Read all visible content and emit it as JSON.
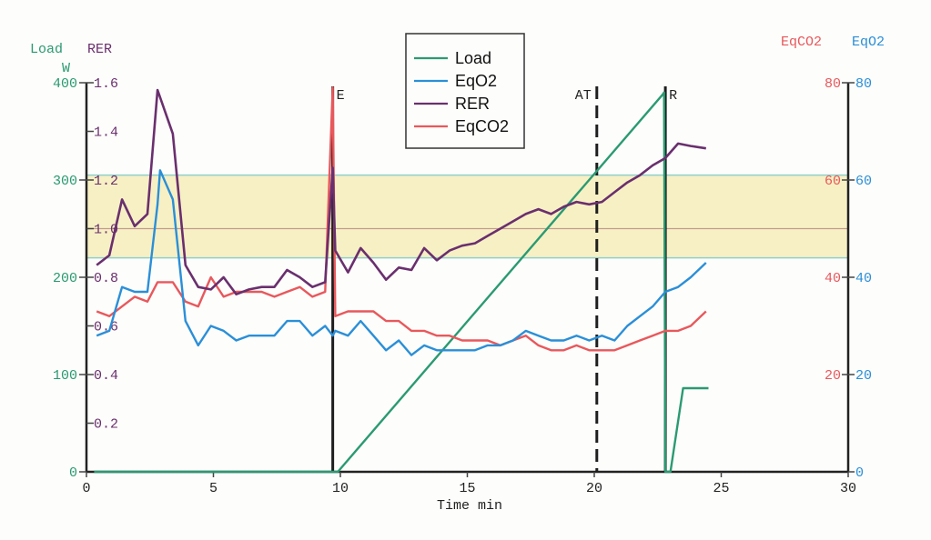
{
  "chart_data": {
    "type": "line",
    "colors": {
      "load": "#2a9a72",
      "rer": "#6a2f6e",
      "eqo2": "#2a8fd8",
      "eqco2": "#e8585c",
      "band": "#f7f0c4",
      "band_edge": "#8fcfc9",
      "rer_ref": "#c49a8e",
      "axis": "#222222"
    },
    "xaxis": {
      "label": "Time  min",
      "range": [
        0,
        30
      ],
      "ticks": [
        "0",
        "5",
        "10",
        "15",
        "20",
        "25",
        "30"
      ]
    },
    "left_axes": {
      "load": {
        "title": "Load",
        "unit": "W",
        "range": [
          0,
          400
        ],
        "ticks": [
          "0",
          "100",
          "200",
          "300",
          "400"
        ]
      },
      "rer": {
        "title": "RER",
        "range": [
          0,
          1.6
        ],
        "ticks": [
          "0.2",
          "0.4",
          "0.6",
          "0.8",
          "1.0",
          "1.2",
          "1.4",
          "1.6"
        ]
      }
    },
    "right_axes": {
      "eqco2": {
        "title": "EqCO2",
        "range": [
          0,
          80
        ],
        "ticks": [
          "20",
          "40",
          "60",
          "80"
        ]
      },
      "eqo2": {
        "title": "EqO2",
        "range": [
          0,
          80
        ],
        "ticks": [
          "0",
          "20",
          "40",
          "60",
          "80"
        ]
      }
    },
    "markers": [
      {
        "label": "E",
        "x": 9.7,
        "style": "solid"
      },
      {
        "label": "AT",
        "x": 20.1,
        "style": "dashed"
      },
      {
        "label": "R",
        "x": 22.8,
        "style": "solid"
      }
    ],
    "reference_band": {
      "rer_range": [
        0.88,
        1.22
      ],
      "rer_line": 1.0
    },
    "legend": [
      "Load",
      "EqO2",
      "RER",
      "EqCO2"
    ],
    "series": [
      {
        "name": "Load",
        "key": "load",
        "axis": "load",
        "points": [
          [
            0.3,
            0
          ],
          [
            9.7,
            0
          ],
          [
            9.9,
            0
          ],
          [
            22.7,
            388
          ],
          [
            22.75,
            390
          ],
          [
            22.8,
            0
          ],
          [
            23.0,
            0
          ],
          [
            23.5,
            86
          ],
          [
            24.5,
            86
          ]
        ]
      },
      {
        "name": "EqO2",
        "key": "eqo2",
        "axis": "eqo2",
        "points": [
          [
            0.4,
            28
          ],
          [
            0.9,
            29
          ],
          [
            1.4,
            38
          ],
          [
            1.9,
            37
          ],
          [
            2.4,
            37
          ],
          [
            2.8,
            55
          ],
          [
            2.9,
            62
          ],
          [
            3.4,
            56
          ],
          [
            3.9,
            31
          ],
          [
            4.4,
            26
          ],
          [
            4.9,
            30
          ],
          [
            5.4,
            29
          ],
          [
            5.9,
            27
          ],
          [
            6.4,
            28
          ],
          [
            6.9,
            28
          ],
          [
            7.4,
            28
          ],
          [
            7.9,
            31
          ],
          [
            8.4,
            31
          ],
          [
            8.9,
            28
          ],
          [
            9.4,
            30
          ],
          [
            9.7,
            28
          ],
          [
            9.8,
            29
          ],
          [
            10.3,
            28
          ],
          [
            10.8,
            31
          ],
          [
            11.3,
            28
          ],
          [
            11.8,
            25
          ],
          [
            12.3,
            27
          ],
          [
            12.8,
            24
          ],
          [
            13.3,
            26
          ],
          [
            13.8,
            25
          ],
          [
            14.3,
            25
          ],
          [
            14.8,
            25
          ],
          [
            15.3,
            25
          ],
          [
            15.8,
            26
          ],
          [
            16.3,
            26
          ],
          [
            16.8,
            27
          ],
          [
            17.3,
            29
          ],
          [
            17.8,
            28
          ],
          [
            18.3,
            27
          ],
          [
            18.8,
            27
          ],
          [
            19.3,
            28
          ],
          [
            19.8,
            27
          ],
          [
            20.3,
            28
          ],
          [
            20.8,
            27
          ],
          [
            21.3,
            30
          ],
          [
            21.8,
            32
          ],
          [
            22.3,
            34
          ],
          [
            22.8,
            37
          ],
          [
            23.3,
            38
          ],
          [
            23.8,
            40
          ],
          [
            24.4,
            43
          ]
        ]
      },
      {
        "name": "RER",
        "key": "rer",
        "axis": "rer",
        "points": [
          [
            0.4,
            0.85
          ],
          [
            0.9,
            0.89
          ],
          [
            1.4,
            1.12
          ],
          [
            1.9,
            1.01
          ],
          [
            2.4,
            1.06
          ],
          [
            2.8,
            1.57
          ],
          [
            3.4,
            1.39
          ],
          [
            3.9,
            0.85
          ],
          [
            4.4,
            0.76
          ],
          [
            4.9,
            0.75
          ],
          [
            5.4,
            0.8
          ],
          [
            5.9,
            0.73
          ],
          [
            6.4,
            0.75
          ],
          [
            6.9,
            0.76
          ],
          [
            7.4,
            0.76
          ],
          [
            7.9,
            0.83
          ],
          [
            8.4,
            0.8
          ],
          [
            8.9,
            0.76
          ],
          [
            9.4,
            0.78
          ],
          [
            9.7,
            1.25
          ],
          [
            9.8,
            0.91
          ],
          [
            10.3,
            0.82
          ],
          [
            10.8,
            0.92
          ],
          [
            11.3,
            0.86
          ],
          [
            11.8,
            0.79
          ],
          [
            12.3,
            0.84
          ],
          [
            12.8,
            0.83
          ],
          [
            13.3,
            0.92
          ],
          [
            13.8,
            0.87
          ],
          [
            14.3,
            0.91
          ],
          [
            14.8,
            0.93
          ],
          [
            15.3,
            0.94
          ],
          [
            15.8,
            0.97
          ],
          [
            16.3,
            1.0
          ],
          [
            16.8,
            1.03
          ],
          [
            17.3,
            1.06
          ],
          [
            17.8,
            1.08
          ],
          [
            18.3,
            1.06
          ],
          [
            18.8,
            1.09
          ],
          [
            19.3,
            1.11
          ],
          [
            19.8,
            1.1
          ],
          [
            20.3,
            1.11
          ],
          [
            20.8,
            1.15
          ],
          [
            21.3,
            1.19
          ],
          [
            21.8,
            1.22
          ],
          [
            22.3,
            1.26
          ],
          [
            22.8,
            1.29
          ],
          [
            23.3,
            1.35
          ],
          [
            23.8,
            1.34
          ],
          [
            24.4,
            1.33
          ]
        ]
      },
      {
        "name": "EqCO2",
        "key": "eqco2",
        "axis": "eqco2",
        "points": [
          [
            0.4,
            33
          ],
          [
            0.9,
            32
          ],
          [
            1.4,
            34
          ],
          [
            1.9,
            36
          ],
          [
            2.4,
            35
          ],
          [
            2.8,
            39
          ],
          [
            3.4,
            39
          ],
          [
            3.9,
            35
          ],
          [
            4.4,
            34
          ],
          [
            4.9,
            40
          ],
          [
            5.4,
            36
          ],
          [
            5.9,
            37
          ],
          [
            6.4,
            37
          ],
          [
            6.9,
            37
          ],
          [
            7.4,
            36
          ],
          [
            7.9,
            37
          ],
          [
            8.4,
            38
          ],
          [
            8.9,
            36
          ],
          [
            9.4,
            37
          ],
          [
            9.7,
            79
          ],
          [
            9.8,
            32
          ],
          [
            10.3,
            33
          ],
          [
            10.8,
            33
          ],
          [
            11.3,
            33
          ],
          [
            11.8,
            31
          ],
          [
            12.3,
            31
          ],
          [
            12.8,
            29
          ],
          [
            13.3,
            29
          ],
          [
            13.8,
            28
          ],
          [
            14.3,
            28
          ],
          [
            14.8,
            27
          ],
          [
            15.3,
            27
          ],
          [
            15.8,
            27
          ],
          [
            16.3,
            26
          ],
          [
            16.8,
            27
          ],
          [
            17.3,
            28
          ],
          [
            17.8,
            26
          ],
          [
            18.3,
            25
          ],
          [
            18.8,
            25
          ],
          [
            19.3,
            26
          ],
          [
            19.8,
            25
          ],
          [
            20.3,
            25
          ],
          [
            20.8,
            25
          ],
          [
            21.3,
            26
          ],
          [
            21.8,
            27
          ],
          [
            22.3,
            28
          ],
          [
            22.8,
            29
          ],
          [
            23.3,
            29
          ],
          [
            23.8,
            30
          ],
          [
            24.4,
            33
          ]
        ]
      }
    ]
  }
}
